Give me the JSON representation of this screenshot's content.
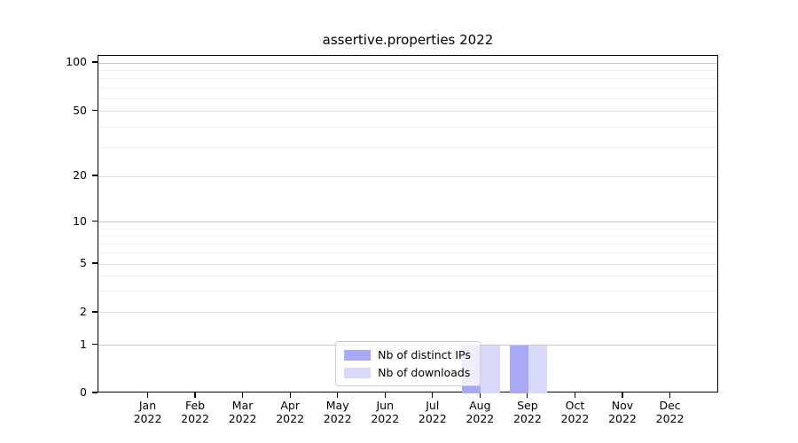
{
  "chart_data": {
    "type": "bar",
    "title": "assertive.properties 2022",
    "x_months": [
      "Jan",
      "Feb",
      "Mar",
      "Apr",
      "May",
      "Jun",
      "Jul",
      "Aug",
      "Sep",
      "Oct",
      "Nov",
      "Dec"
    ],
    "x_year": "2022",
    "series": [
      {
        "name": "Nb of distinct IPs",
        "color": "#a8a8f5",
        "values": [
          0,
          0,
          0,
          0,
          0,
          0,
          0,
          1,
          1,
          0,
          0,
          0
        ]
      },
      {
        "name": "Nb of downloads",
        "color": "#d8d8f9",
        "values": [
          0,
          0,
          0,
          0,
          0,
          0,
          0,
          1,
          1,
          0,
          0,
          0
        ]
      }
    ],
    "yticks": [
      100,
      50,
      20,
      10,
      5,
      2,
      1,
      0
    ],
    "yminors": [
      3,
      4,
      6,
      7,
      8,
      9,
      30,
      40,
      60,
      70,
      80,
      90
    ],
    "xlabel": "",
    "ylabel": "",
    "yscale": "symlog",
    "ylim": [
      0,
      113
    ],
    "grid": "both",
    "legend_position": "lower center",
    "colors": {
      "grid_decade": "#c9c9c9",
      "grid_mid": "#dedede",
      "grid_minor": "#efefef",
      "axis": "#000000",
      "text": "#000000"
    }
  }
}
